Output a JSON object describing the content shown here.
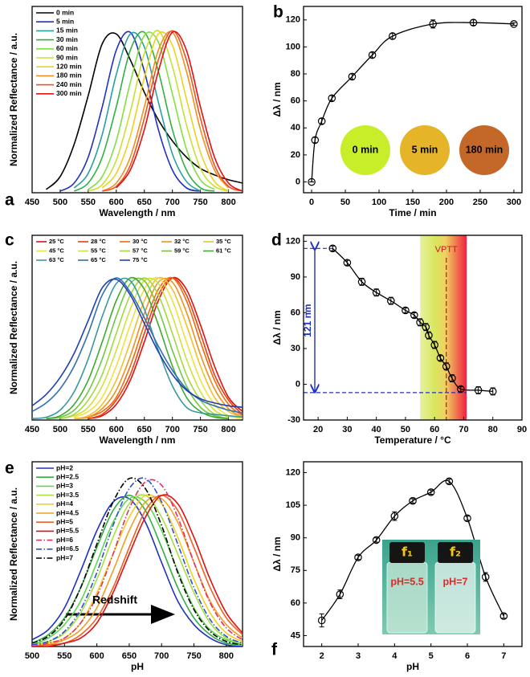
{
  "chart_data": [
    {
      "type": "line",
      "panel": "a",
      "x_label": "Wavelength / nm",
      "y_label": "Normalized Reflectance / a.u.",
      "x": [
        450,
        475,
        500,
        525,
        550,
        575,
        600,
        625,
        650,
        675,
        700,
        725,
        750,
        775,
        800,
        825
      ],
      "xlim": [
        450,
        825
      ],
      "xticks": [
        450,
        500,
        550,
        600,
        650,
        700,
        750,
        800
      ],
      "ylim": [
        0,
        1.15
      ],
      "legend": "upper left",
      "legend_columns": 1,
      "series": [
        {
          "name": "0 min",
          "color": "#000000",
          "values": [
            null,
            0.02,
            0.1,
            0.3,
            0.6,
            0.92,
            0.98,
            0.82,
            0.62,
            0.45,
            0.32,
            0.22,
            0.15,
            0.11,
            0.08,
            0.06
          ]
        },
        {
          "name": "5 min",
          "color": "#2030c0",
          "values": [
            null,
            null,
            0.01,
            0.06,
            0.22,
            0.53,
            0.88,
            0.99,
            0.75,
            0.39,
            0.14,
            0.03,
            0.01,
            null,
            null,
            null
          ]
        },
        {
          "name": "15 min",
          "color": "#2aa0a0",
          "values": [
            null,
            null,
            null,
            0.03,
            0.12,
            0.36,
            0.73,
            0.98,
            0.9,
            0.56,
            0.24,
            0.07,
            0.01,
            null,
            null,
            null
          ]
        },
        {
          "name": "30 min",
          "color": "#30b040",
          "values": [
            null,
            null,
            null,
            0.01,
            0.06,
            0.22,
            0.53,
            0.88,
            0.99,
            0.75,
            0.39,
            0.14,
            0.03,
            0.01,
            null,
            null
          ]
        },
        {
          "name": "60 min",
          "color": "#80e040",
          "values": [
            null,
            null,
            null,
            null,
            0.02,
            0.1,
            0.32,
            0.68,
            0.97,
            0.93,
            0.61,
            0.27,
            0.08,
            0.02,
            null,
            null
          ]
        },
        {
          "name": "90 min",
          "color": "#c8e030",
          "values": [
            null,
            null,
            null,
            null,
            0.01,
            0.05,
            0.2,
            0.5,
            0.86,
            1,
            0.78,
            0.42,
            0.15,
            0.04,
            0.01,
            null
          ]
        },
        {
          "name": "120 min",
          "color": "#f0d020",
          "values": [
            null,
            null,
            null,
            null,
            null,
            0.03,
            0.12,
            0.35,
            0.71,
            0.98,
            0.91,
            0.58,
            0.25,
            0.07,
            0.01,
            null
          ]
        },
        {
          "name": "180 min",
          "color": "#f09020",
          "values": [
            null,
            null,
            null,
            null,
            null,
            0.01,
            0.06,
            0.22,
            0.53,
            0.88,
            0.99,
            0.75,
            0.39,
            0.14,
            0.03,
            null
          ]
        },
        {
          "name": "240 min",
          "color": "#f05020",
          "values": [
            null,
            null,
            null,
            null,
            null,
            0.01,
            0.04,
            0.17,
            0.46,
            0.82,
            1,
            0.82,
            0.46,
            0.17,
            0.04,
            0.01
          ]
        },
        {
          "name": "300 min",
          "color": "#e01010",
          "values": [
            null,
            null,
            null,
            null,
            null,
            null,
            0.03,
            0.14,
            0.39,
            0.75,
            0.99,
            0.88,
            0.53,
            0.22,
            0.06,
            0.01
          ]
        }
      ]
    },
    {
      "type": "errorbar",
      "panel": "b",
      "x_label": "Time / min",
      "y_label": "Δλ / nm",
      "x": [
        0,
        5,
        15,
        30,
        60,
        90,
        120,
        180,
        240,
        300
      ],
      "values": [
        0,
        31,
        45,
        62,
        78,
        94,
        108,
        117,
        118,
        117
      ],
      "errors": [
        0,
        2,
        2,
        2,
        2,
        2,
        2,
        3,
        2,
        1
      ],
      "xlim": [
        -12,
        312
      ],
      "xticks": [
        0,
        50,
        100,
        150,
        200,
        250,
        300
      ],
      "ylim": [
        -8,
        130
      ],
      "yticks": [
        0,
        20,
        40,
        60,
        80,
        100,
        120
      ],
      "insets": [
        {
          "label": "0 min",
          "color": "#c8ee2a"
        },
        {
          "label": "5 min",
          "color": "#e6b428"
        },
        {
          "label": "180 min",
          "color": "#c4682a"
        }
      ]
    },
    {
      "type": "line",
      "panel": "c",
      "x_label": "Wavelength / nm",
      "y_label": "Normalized Reflectance / a.u.",
      "x": [
        450,
        475,
        500,
        525,
        550,
        575,
        600,
        625,
        650,
        675,
        700,
        725,
        750,
        775,
        800,
        825
      ],
      "xlim": [
        450,
        825
      ],
      "xticks": [
        450,
        500,
        550,
        600,
        650,
        700,
        750,
        800
      ],
      "ylim": [
        0,
        1.3
      ],
      "legend": "upper left",
      "legend_columns": 5,
      "series": [
        {
          "name": "25 °C",
          "color": "#e01010",
          "values": [
            null,
            null,
            null,
            null,
            0.01,
            0.03,
            0.11,
            0.28,
            0.55,
            0.84,
            1,
            0.92,
            0.67,
            0.38,
            0.16,
            0.06
          ]
        },
        {
          "name": "28 °C",
          "color": "#f03a10",
          "values": [
            null,
            null,
            null,
            null,
            0.01,
            0.04,
            0.14,
            0.32,
            0.61,
            0.88,
            1,
            0.88,
            0.61,
            0.32,
            0.14,
            0.04
          ]
        },
        {
          "name": "30 °C",
          "color": "#f06a10",
          "values": [
            null,
            null,
            null,
            null,
            0.02,
            0.06,
            0.16,
            0.38,
            0.67,
            0.92,
            1,
            0.84,
            0.55,
            0.28,
            0.11,
            0.03
          ]
        },
        {
          "name": "32 °C",
          "color": "#f09020",
          "values": [
            null,
            null,
            null,
            0.01,
            0.02,
            0.08,
            0.21,
            0.45,
            0.75,
            0.97,
            0.97,
            0.76,
            0.46,
            0.22,
            0.08,
            0.02
          ]
        },
        {
          "name": "35 °C",
          "color": "#f0c030",
          "values": [
            null,
            null,
            null,
            0.01,
            0.03,
            0.11,
            0.28,
            0.55,
            0.84,
            1,
            0.92,
            0.67,
            0.38,
            0.16,
            0.06,
            0.02
          ]
        },
        {
          "name": "45 °C",
          "color": "#f0e040",
          "values": [
            null,
            null,
            null,
            0.02,
            0.06,
            0.16,
            0.38,
            0.67,
            0.92,
            1,
            0.84,
            0.55,
            0.28,
            0.11,
            0.03,
            0.01
          ]
        },
        {
          "name": "55 °C",
          "color": "#d0e040",
          "values": [
            null,
            null,
            0.01,
            0.03,
            0.09,
            0.24,
            0.49,
            0.78,
            0.98,
            0.96,
            0.73,
            0.43,
            0.2,
            0.07,
            0.02,
            null
          ]
        },
        {
          "name": "57 °C",
          "color": "#a0d840",
          "values": [
            null,
            null,
            0.01,
            0.04,
            0.14,
            0.32,
            0.61,
            0.88,
            1,
            0.88,
            0.61,
            0.32,
            0.14,
            0.04,
            0.01,
            null
          ]
        },
        {
          "name": "59 °C",
          "color": "#70c840",
          "values": [
            null,
            0.01,
            0.02,
            0.07,
            0.2,
            0.43,
            0.73,
            0.96,
            0.98,
            0.78,
            0.49,
            0.24,
            0.09,
            0.03,
            0.01,
            null
          ]
        },
        {
          "name": "61 °C",
          "color": "#40a830",
          "values": [
            null,
            0.01,
            0.03,
            0.11,
            0.28,
            0.55,
            0.84,
            1,
            0.92,
            0.67,
            0.38,
            0.16,
            0.06,
            0.02,
            0.01,
            null
          ]
        },
        {
          "name": "63 °C",
          "color": "#3a98a0",
          "values": [
            0.01,
            0.02,
            0.07,
            0.2,
            0.43,
            0.73,
            0.96,
            0.98,
            0.78,
            0.49,
            0.24,
            0.09,
            0.05,
            0.04,
            0.03,
            0.02
          ]
        },
        {
          "name": "65 °C",
          "color": "#3070b0",
          "values": [
            0.06,
            0.12,
            0.22,
            0.38,
            0.61,
            0.88,
            1,
            0.9,
            0.72,
            0.52,
            0.35,
            0.22,
            0.14,
            0.1,
            0.07,
            0.05
          ]
        },
        {
          "name": "75 °C",
          "color": "#2040b0",
          "values": [
            0.1,
            0.18,
            0.3,
            0.47,
            0.7,
            0.93,
            0.99,
            0.88,
            0.68,
            0.48,
            0.32,
            0.21,
            0.15,
            0.12,
            0.1,
            0.09
          ]
        }
      ]
    },
    {
      "type": "errorbar",
      "panel": "d",
      "x_label": "Temperature / °C",
      "y_label": "Δλ / nm",
      "x": [
        25,
        30,
        35,
        40,
        45,
        50,
        53,
        55,
        57,
        58,
        60,
        62,
        64,
        66,
        69,
        75,
        80
      ],
      "values": [
        114,
        102,
        86,
        77,
        70,
        62,
        58,
        52,
        48,
        41,
        33,
        22,
        15,
        5,
        -4,
        -5,
        -6
      ],
      "errors": [
        2,
        2,
        3,
        3,
        3,
        2,
        2,
        3,
        3,
        3,
        3,
        2,
        3,
        3,
        2,
        3,
        3
      ],
      "xlim": [
        15,
        90
      ],
      "xticks": [
        20,
        30,
        40,
        50,
        60,
        70,
        80,
        90
      ],
      "ylim": [
        -30,
        125
      ],
      "yticks": [
        -30,
        0,
        30,
        60,
        90,
        120
      ],
      "band": [
        55,
        71
      ],
      "vptt": 64,
      "vptt_label": "VPTT",
      "ref_levels": [
        114,
        -7
      ],
      "span_label": "121 nm"
    },
    {
      "type": "line",
      "panel": "e",
      "x_label": "pH",
      "y_label": "Normalized Reflectance / a.u.",
      "x": [
        500,
        525,
        550,
        575,
        600,
        625,
        650,
        675,
        700,
        725,
        750,
        775,
        800,
        825
      ],
      "xlim": [
        500,
        825
      ],
      "xticks": [
        500,
        550,
        600,
        650,
        700,
        750,
        800
      ],
      "ylim": [
        0,
        1.1
      ],
      "legend": "upper left",
      "legend_columns": 1,
      "annotation": "Redshift",
      "series": [
        {
          "name": "pH=2",
          "color": "#2030c0",
          "values": [
            0.04,
            0.1,
            0.23,
            0.45,
            0.69,
            0.86,
            0.88,
            0.74,
            0.5,
            0.27,
            0.13,
            0.05,
            0.01,
            0
          ]
        },
        {
          "name": "pH=2.5",
          "color": "#30b040",
          "values": [
            0.02,
            0.07,
            0.17,
            0.35,
            0.59,
            0.81,
            0.9,
            0.81,
            0.59,
            0.35,
            0.17,
            0.07,
            0.02,
            0.01
          ]
        },
        {
          "name": "pH=3",
          "color": "#60d850",
          "values": [
            0.01,
            0.05,
            0.13,
            0.27,
            0.5,
            0.74,
            0.88,
            0.86,
            0.69,
            0.45,
            0.23,
            0.1,
            0.04,
            0.01
          ]
        },
        {
          "name": "pH=3.5",
          "color": "#a8e040",
          "values": [
            0.01,
            0.03,
            0.08,
            0.2,
            0.4,
            0.65,
            0.85,
            0.9,
            0.77,
            0.55,
            0.32,
            0.14,
            0.05,
            0.02
          ]
        },
        {
          "name": "pH=4",
          "color": "#f0d020",
          "values": [
            0,
            0.02,
            0.05,
            0.14,
            0.32,
            0.55,
            0.77,
            0.9,
            0.85,
            0.65,
            0.4,
            0.2,
            0.08,
            0.03
          ]
        },
        {
          "name": "pH=4.5",
          "color": "#f0a020",
          "values": [
            0,
            0.01,
            0.04,
            0.1,
            0.23,
            0.45,
            0.69,
            0.86,
            0.88,
            0.74,
            0.5,
            0.27,
            0.13,
            0.05
          ]
        },
        {
          "name": "pH=5",
          "color": "#f06020",
          "values": [
            0,
            0.01,
            0.02,
            0.07,
            0.17,
            0.35,
            0.59,
            0.81,
            0.9,
            0.81,
            0.59,
            0.35,
            0.17,
            0.07
          ]
        },
        {
          "name": "pH=5.5",
          "color": "#e01010",
          "values": [
            0,
            0,
            0.02,
            0.05,
            0.14,
            0.32,
            0.55,
            0.77,
            0.9,
            0.85,
            0.65,
            0.4,
            0.2,
            0.08
          ]
        },
        {
          "name": "pH=6",
          "color": "#e0306a",
          "dash": "dashdot",
          "values": [
            0,
            0.02,
            0.05,
            0.14,
            0.3,
            0.55,
            0.82,
            0.98,
            0.96,
            0.77,
            0.5,
            0.26,
            0.11,
            0.04
          ]
        },
        {
          "name": "pH=6.5",
          "color": "#3050d0",
          "dash": "dashdot",
          "values": [
            0.01,
            0.03,
            0.09,
            0.22,
            0.44,
            0.72,
            0.94,
            1,
            0.86,
            0.61,
            0.35,
            0.16,
            0.06,
            0.02
          ]
        },
        {
          "name": "pH=7",
          "color": "#000000",
          "dash": "dashdot",
          "values": [
            0.02,
            0.06,
            0.16,
            0.35,
            0.61,
            0.86,
            1,
            0.94,
            0.72,
            0.44,
            0.22,
            0.09,
            0.03,
            0.01
          ]
        }
      ]
    },
    {
      "type": "errorbar",
      "panel": "f",
      "x_label": "pH",
      "y_label": "Δλ / nm",
      "x": [
        2,
        2.5,
        3,
        3.5,
        4,
        4.5,
        5,
        5.5,
        6,
        6.5,
        7
      ],
      "values": [
        52,
        64,
        81,
        89,
        100,
        107,
        111,
        116,
        99,
        72,
        54
      ],
      "errors": [
        3,
        2,
        1,
        1,
        2,
        1,
        1,
        1,
        1,
        2,
        1
      ],
      "xlim": [
        1.5,
        7.5
      ],
      "xticks": [
        2,
        3,
        4,
        5,
        6,
        7
      ],
      "ylim": [
        40,
        125
      ],
      "yticks": [
        45,
        60,
        75,
        90,
        105,
        120
      ],
      "vials": [
        {
          "label": "f₁",
          "ph_label": "pH=5.5"
        },
        {
          "label": "f₂",
          "ph_label": "pH=7"
        }
      ]
    }
  ]
}
